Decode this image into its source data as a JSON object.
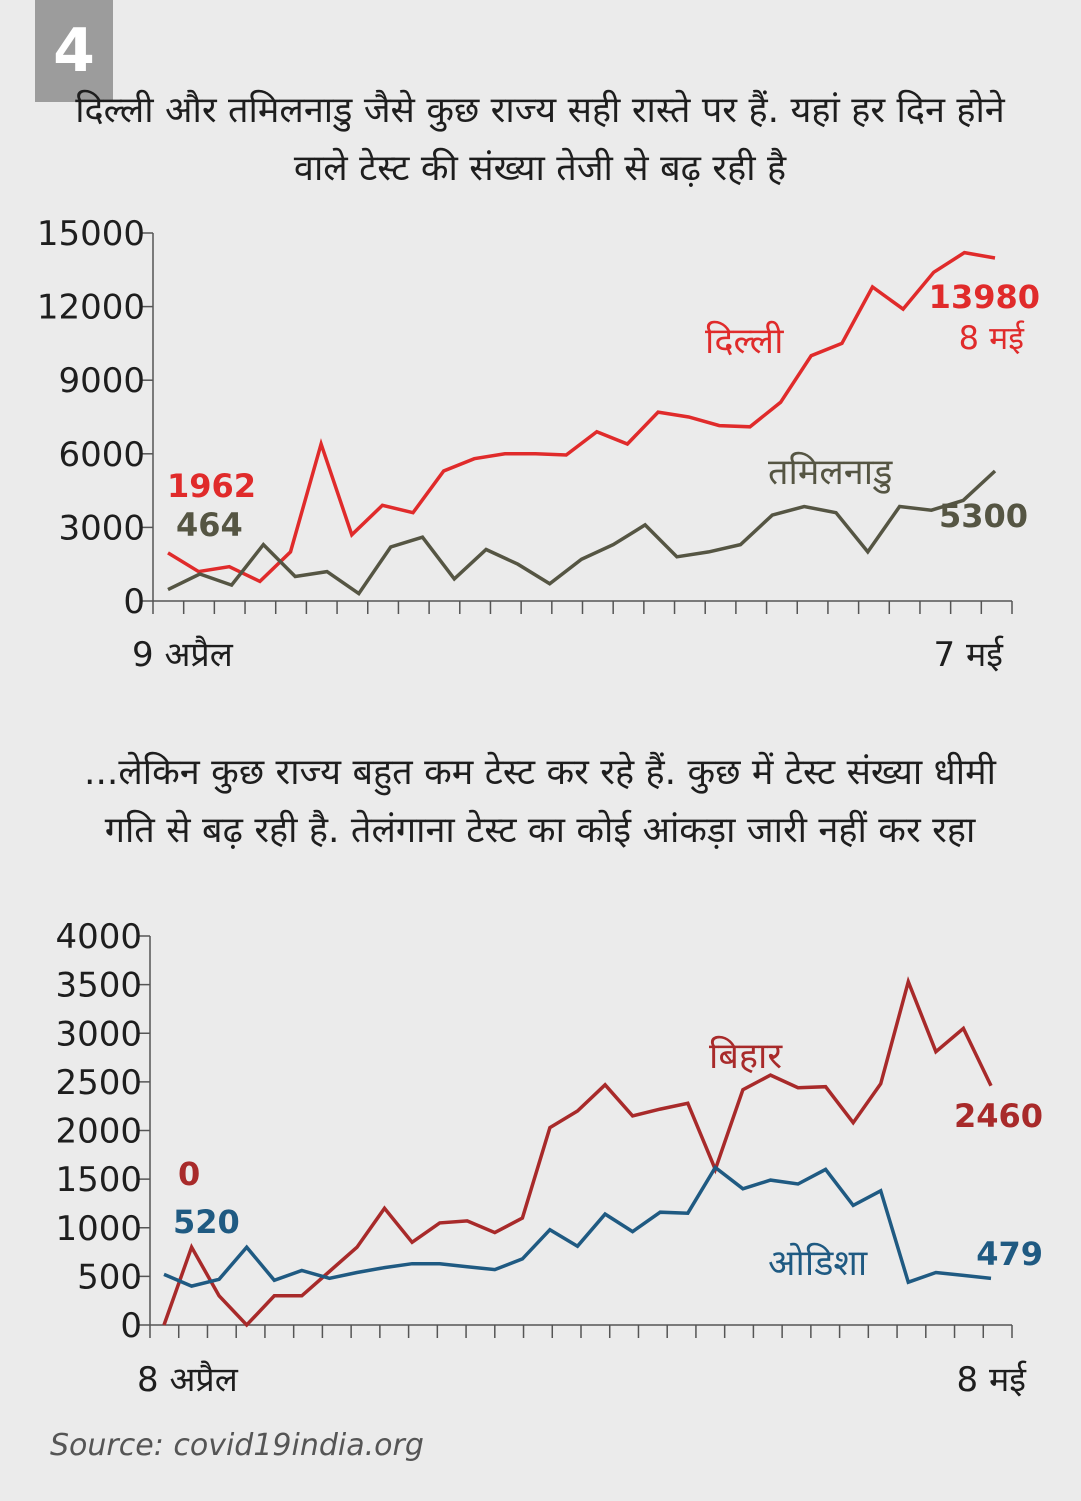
{
  "badge": "4",
  "chart1_title": "दिल्ली और तमिलनाडु जैसे कुछ राज्य सही रास्ते पर हैं. यहां हर दिन होने वाले टेस्ट की संख्या तेजी से बढ़ रही है",
  "chart2_title": "...लेकिन कुछ राज्य बहुत कम टेस्ट कर रहे हैं. कुछ में टेस्ट संख्या धीमी गति से बढ़ रही है. तेलंगाना टेस्ट का कोई आंकड़ा जारी नहीं कर रहा",
  "source": "Source: covid19india.org",
  "chart_data": [
    {
      "type": "line",
      "ylim": [
        0,
        15000
      ],
      "yticks": [
        "0",
        "3000",
        "6000",
        "9000",
        "12000",
        "15000"
      ],
      "x_start_label": "9 अप्रैल",
      "x_end_label": "7 मई",
      "grid": false,
      "series": [
        {
          "name": "दिल्ली",
          "color": "#e02b2b",
          "values": [
            1962,
            1200,
            1400,
            800,
            2000,
            6400,
            2700,
            3900,
            3600,
            5300,
            5800,
            6000,
            6000,
            5950,
            6900,
            6400,
            7700,
            7500,
            7150,
            7100,
            8100,
            10000,
            10500,
            12800,
            11900,
            13400,
            14200,
            13980
          ],
          "start_label": "1962",
          "end_label": "13980",
          "end_date": "8 मई"
        },
        {
          "name": "तमिलनाडु",
          "color": "#555543",
          "values": [
            464,
            1100,
            650,
            2300,
            1000,
            1200,
            300,
            2200,
            2600,
            900,
            2100,
            1500,
            700,
            1700,
            2300,
            3100,
            1800,
            2000,
            2300,
            3500,
            3850,
            3600,
            2000,
            3850,
            3700,
            4100,
            5300
          ],
          "start_label": "464",
          "end_label": "5300"
        }
      ]
    },
    {
      "type": "line",
      "ylim": [
        0,
        4000
      ],
      "yticks": [
        "0",
        "500",
        "1000",
        "1500",
        "2000",
        "2500",
        "3000",
        "3500",
        "4000"
      ],
      "x_start_label": "8 अप्रैल",
      "x_end_label": "8 मई",
      "grid": false,
      "series": [
        {
          "name": "बिहार",
          "color": "#a82a2a",
          "values": [
            0,
            800,
            300,
            0,
            300,
            300,
            550,
            800,
            1200,
            850,
            1050,
            1070,
            950,
            1100,
            2030,
            2200,
            2470,
            2150,
            2220,
            2280,
            1600,
            2420,
            2570,
            2440,
            2450,
            2080,
            2480,
            3530,
            2810,
            3050,
            2460
          ],
          "start_label": "0",
          "end_label": "2460"
        },
        {
          "name": "ओडिशा",
          "color": "#1f5a82",
          "values": [
            520,
            400,
            470,
            800,
            460,
            560,
            480,
            540,
            590,
            630,
            630,
            600,
            570,
            680,
            980,
            810,
            1140,
            960,
            1160,
            1150,
            1620,
            1400,
            1490,
            1450,
            1600,
            1230,
            1380,
            440,
            540,
            510,
            479
          ],
          "start_label": "520",
          "end_label": "479"
        }
      ]
    }
  ]
}
